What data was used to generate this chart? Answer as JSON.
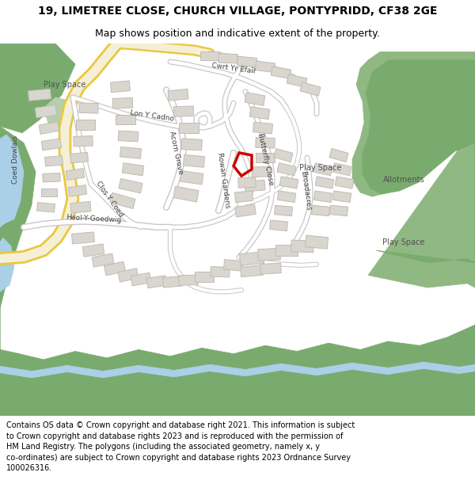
{
  "title_line1": "19, LIMETREE CLOSE, CHURCH VILLAGE, PONTYPRIDD, CF38 2GE",
  "title_line2": "Map shows position and indicative extent of the property.",
  "footer": "Contains OS data © Crown copyright and database right 2021. This information is subject\nto Crown copyright and database rights 2023 and is reproduced with the permission of\nHM Land Registry. The polygons (including the associated geometry, namely x, y\nco-ordinates) are subject to Crown copyright and database rights 2023 Ordnance Survey\n100026316.",
  "bg_color": "#ffffff",
  "map_bg": "#f2f0eb",
  "building_color": "#d9d6d0",
  "building_edge": "#c0bcb5",
  "green_dark": "#7aab6e",
  "green_mid": "#8fb882",
  "green_light": "#b5cfaa",
  "water_color": "#aad0e8",
  "road_yellow_fill": "#f5f0d5",
  "road_yellow_border": "#e8c840",
  "road_white_fill": "#ffffff",
  "road_white_border": "#c8c8c8",
  "red_poly_color": "#cc0000",
  "title_fontsize": 10,
  "subtitle_fontsize": 9,
  "footer_fontsize": 7.0,
  "label_color": "#404040",
  "place_color": "#505050"
}
